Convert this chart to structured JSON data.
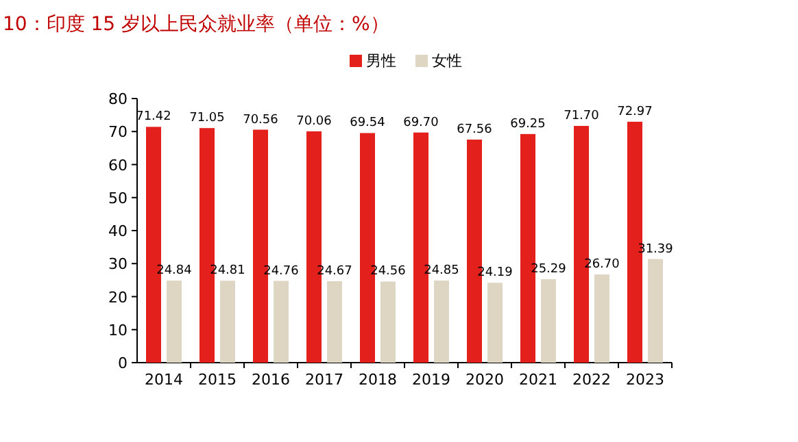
{
  "chart_data": {
    "type": "bar",
    "title": "10：印度 15 岁以上民众就业率（单位：%）",
    "categories": [
      "2014",
      "2015",
      "2016",
      "2017",
      "2018",
      "2019",
      "2020",
      "2021",
      "2022",
      "2023"
    ],
    "series": [
      {
        "name": "男性",
        "color": "#e3201b",
        "values": [
          71.42,
          71.05,
          70.56,
          70.06,
          69.54,
          69.7,
          67.56,
          69.25,
          71.7,
          72.97
        ],
        "value_labels": [
          "71.42",
          "71.05",
          "70.56",
          "70.06",
          "69.54",
          "69.70",
          "67.56",
          "69.25",
          "71.70",
          "72.97"
        ]
      },
      {
        "name": "女性",
        "color": "#ded5c2",
        "values": [
          24.84,
          24.81,
          24.76,
          24.67,
          24.56,
          24.85,
          24.19,
          25.29,
          26.7,
          31.39
        ],
        "value_labels": [
          "24.84",
          "24.81",
          "24.76",
          "24.67",
          "24.56",
          "24.85",
          "24.19",
          "25.29",
          "26.70",
          "31.39"
        ]
      }
    ],
    "ylim": [
      0,
      80
    ],
    "yticks": [
      0,
      10,
      20,
      30,
      40,
      50,
      60,
      70,
      80
    ],
    "legend": "top"
  }
}
